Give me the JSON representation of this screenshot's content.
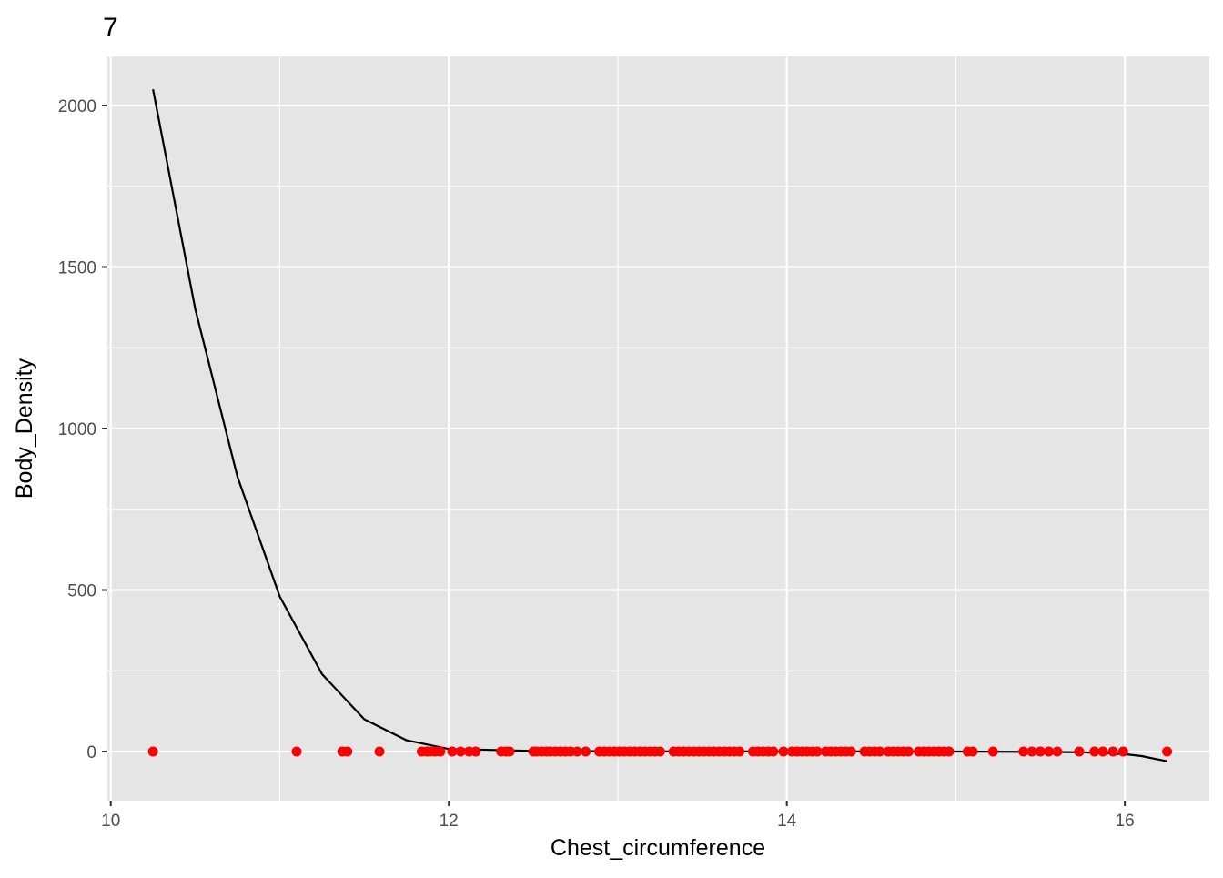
{
  "chart_data": {
    "type": "scatter",
    "title": "7",
    "xlabel": "Chest_circumference",
    "ylabel": "Body_Density",
    "xlim": [
      9.98,
      16.5
    ],
    "ylim": [
      -152,
      2152
    ],
    "x_ticks": [
      10,
      12,
      14,
      16
    ],
    "x_tick_labels": [
      "10",
      "12",
      "14",
      "16"
    ],
    "y_ticks": [
      0,
      500,
      1000,
      1500,
      2000
    ],
    "y_tick_labels": [
      "0",
      "500",
      "1000",
      "1500",
      "2000"
    ],
    "grid": true,
    "legend": "none",
    "colors": {
      "panel": "#e5e5e5",
      "grid": "#ffffff",
      "points": "#ff0000",
      "line": "#000000"
    },
    "points": {
      "x": [
        10.25,
        11.1,
        11.37,
        11.4,
        11.59,
        11.84,
        11.87,
        11.89,
        11.92,
        11.95,
        12.02,
        12.07,
        12.12,
        12.16,
        12.31,
        12.34,
        12.36,
        12.5,
        12.52,
        12.55,
        12.58,
        12.6,
        12.63,
        12.66,
        12.69,
        12.72,
        12.76,
        12.81,
        12.89,
        12.92,
        12.95,
        12.98,
        13.01,
        13.04,
        13.07,
        13.1,
        13.13,
        13.16,
        13.19,
        13.22,
        13.25,
        13.33,
        13.36,
        13.39,
        13.42,
        13.45,
        13.48,
        13.51,
        13.54,
        13.57,
        13.6,
        13.63,
        13.66,
        13.69,
        13.72,
        13.8,
        13.83,
        13.86,
        13.89,
        13.92,
        13.98,
        14.03,
        14.06,
        14.09,
        14.12,
        14.15,
        14.18,
        14.23,
        14.26,
        14.29,
        14.32,
        14.35,
        14.38,
        14.46,
        14.49,
        14.52,
        14.55,
        14.6,
        14.63,
        14.66,
        14.69,
        14.72,
        14.78,
        14.81,
        14.84,
        14.87,
        14.9,
        14.93,
        14.96,
        15.07,
        15.1,
        15.22,
        15.4,
        15.45,
        15.5,
        15.55,
        15.6,
        15.73,
        15.82,
        15.87,
        15.93,
        15.99,
        16.25
      ],
      "y": 0
    },
    "fit_line": {
      "x": [
        10.25,
        10.5,
        10.75,
        11.0,
        11.25,
        11.5,
        11.75,
        12.0,
        12.5,
        13.0,
        13.5,
        14.0,
        14.5,
        15.0,
        15.5,
        15.75,
        16.0,
        16.1,
        16.25
      ],
      "y": [
        2050,
        1370,
        850,
        480,
        240,
        100,
        35,
        8,
        2,
        1,
        0.5,
        0.5,
        0.5,
        0,
        -1,
        -2,
        -8,
        -14,
        -30
      ]
    }
  }
}
